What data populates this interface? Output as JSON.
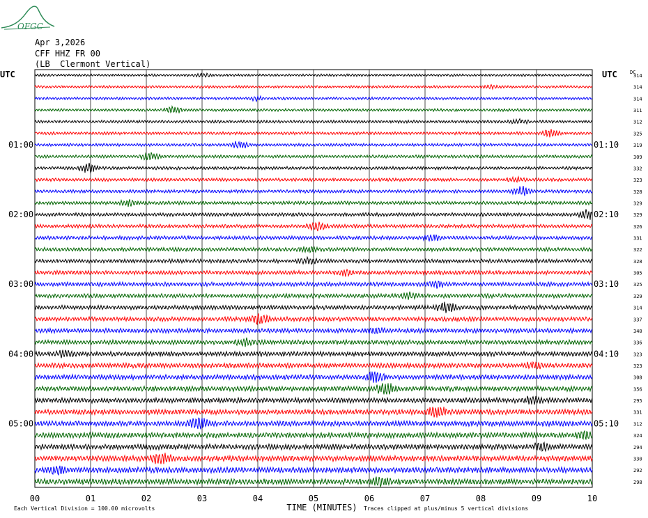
{
  "logo": {
    "text": "OFGC",
    "color": "#2e8b57"
  },
  "header": {
    "date": "Apr 3,2026",
    "station": "CFF HHZ FR 00",
    "location": "(LB  Clermont Vertical)"
  },
  "chart_data": {
    "type": "line",
    "title": "",
    "left_axis_label": "UTC",
    "right_axis_label": "UTC",
    "right_column_label": "DC",
    "xlabel": "TIME (MINUTES)",
    "x_ticks": [
      "00",
      "01",
      "02",
      "03",
      "04",
      "05",
      "06",
      "07",
      "08",
      "09",
      "10"
    ],
    "xlim": [
      0,
      10
    ],
    "trace_colors": [
      "#000000",
      "#ff0000",
      "#0000ff",
      "#006400"
    ],
    "left_time_labels": [
      {
        "row": 6,
        "label": "01:00"
      },
      {
        "row": 12,
        "label": "02:00"
      },
      {
        "row": 18,
        "label": "03:00"
      },
      {
        "row": 24,
        "label": "04:00"
      },
      {
        "row": 30,
        "label": "05:00"
      }
    ],
    "right_time_labels": [
      {
        "row": 6,
        "label": "01:10"
      },
      {
        "row": 12,
        "label": "02:10"
      },
      {
        "row": 18,
        "label": "03:10"
      },
      {
        "row": 24,
        "label": "04:10"
      },
      {
        "row": 30,
        "label": "05:10"
      }
    ],
    "dc_offsets": [
      314,
      314,
      314,
      311,
      312,
      325,
      319,
      309,
      332,
      323,
      328,
      329,
      329,
      326,
      331,
      322,
      328,
      305,
      325,
      329,
      314,
      337,
      340,
      336,
      323,
      323,
      308,
      356,
      295,
      331,
      312,
      324,
      294,
      330,
      292,
      298
    ],
    "footer_left": "Each Vertical Division =  100.00 microvolts",
    "footer_right": "Traces clipped at plus/minus 5 vertical divisions"
  }
}
